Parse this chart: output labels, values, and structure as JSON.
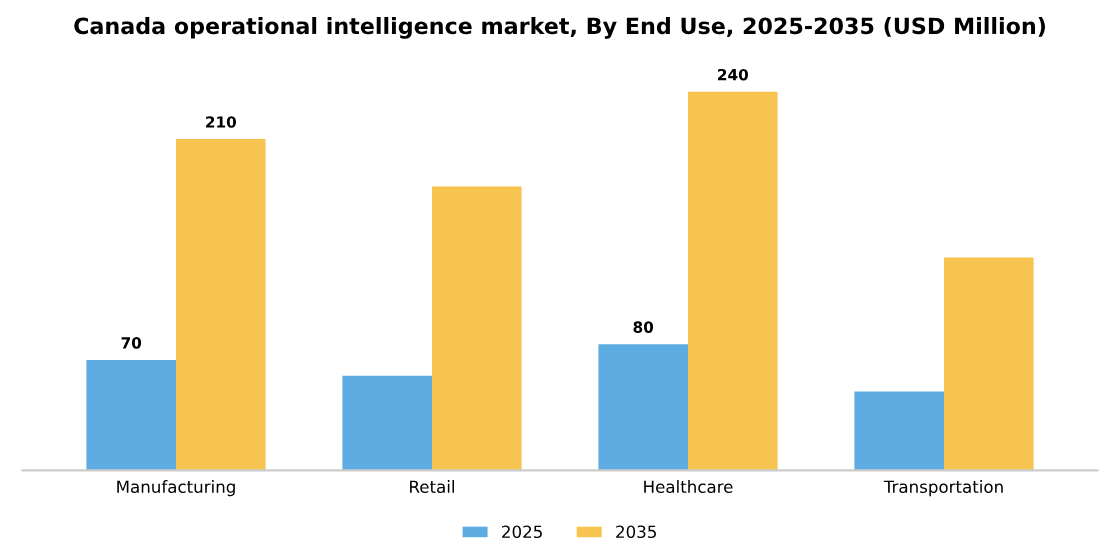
{
  "chart_data": {
    "type": "bar",
    "title": "Canada operational intelligence market, By End Use, 2025-2035 (USD Million)",
    "categories": [
      "Manufacturing",
      "Retail",
      "Healthcare",
      "Transportation"
    ],
    "series": [
      {
        "name": "2025",
        "color": "#5dade2",
        "values": [
          70,
          60,
          80,
          50
        ],
        "value_labels": [
          "70",
          null,
          "80",
          null
        ]
      },
      {
        "name": "2035",
        "color": "#f7c44f",
        "values": [
          210,
          180,
          240,
          135
        ],
        "value_labels": [
          "210",
          null,
          "240",
          null
        ]
      }
    ],
    "tick_labels": "x",
    "grid": false,
    "legend": "bottom"
  }
}
